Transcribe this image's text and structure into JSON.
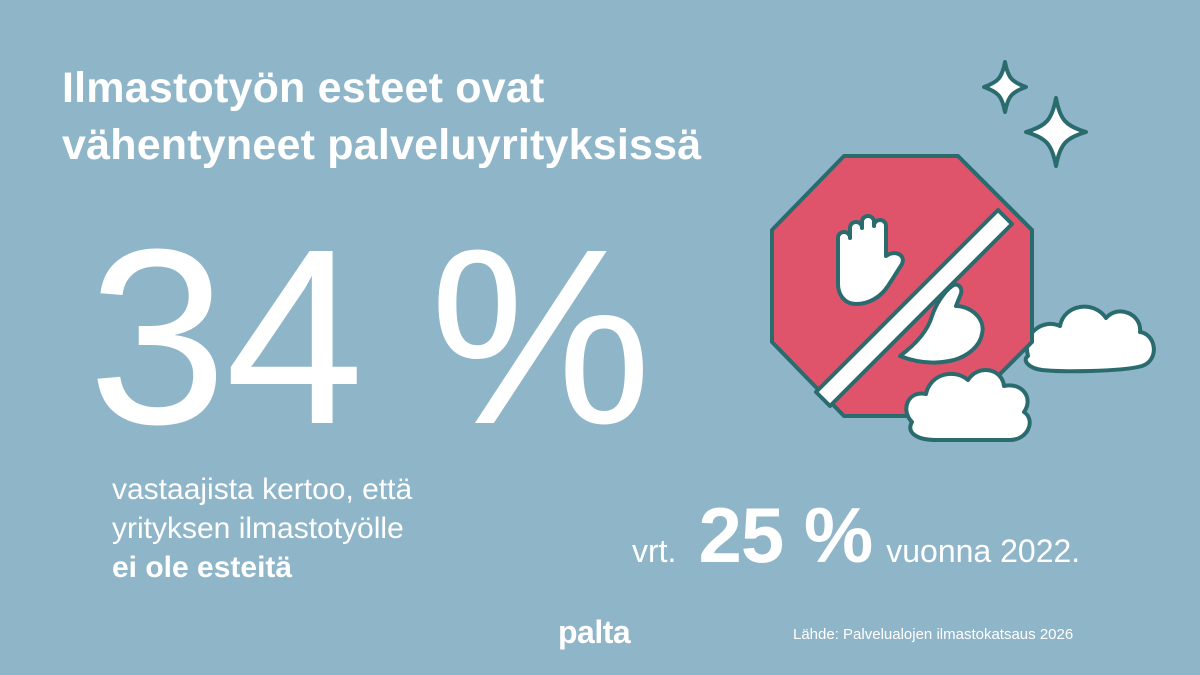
{
  "headline": {
    "line1": "Ilmastotyön esteet ovat",
    "line2": "vähentyneet palveluyrityksissä"
  },
  "main_stat": {
    "value": "34 %"
  },
  "description": {
    "line1": "vastaajista kertoo, että",
    "line2": "yrityksen ilmastotyölle",
    "line3_bold": "ei ole esteitä"
  },
  "comparison": {
    "prefix": "vrt.",
    "value": "25 %",
    "suffix": "vuonna 2022."
  },
  "brand": {
    "logo_text": "palta"
  },
  "source": {
    "text": "Lähde: Palvelualojen ilmastokatsaus 2026"
  },
  "illustration": {
    "icon": "stop-sign-hand-icon",
    "colors": {
      "background": "#8fb5c9",
      "stop_sign": "#e0546b",
      "outline": "#2a6b6e",
      "fill_light": "#ffffff"
    }
  }
}
